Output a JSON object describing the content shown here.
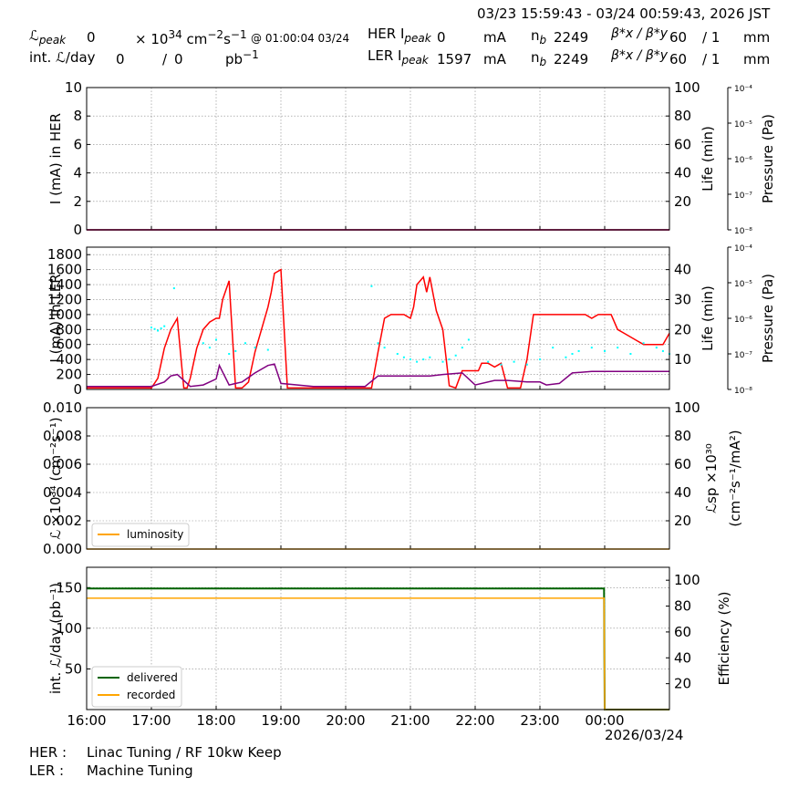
{
  "header": {
    "date_range": "03/23 15:59:43 - 03/24 00:59:43, 2026 JST",
    "lpeak_label": "ℒ",
    "lpeak_sub": "peak",
    "lpeak_value": "0",
    "lpeak_unit": "× 10",
    "lpeak_unit_exp": "34",
    "lpeak_unit_tail": " cm",
    "lpeak_unit_exp2": "−2",
    "lpeak_unit_tail2": "s",
    "lpeak_unit_exp3": "−1",
    "lpeak_time": "@ 01:00:04 03/24",
    "intl_label": "int. ℒ/day",
    "intl_value1": "0",
    "intl_sep": "/",
    "intl_value2": "0",
    "intl_unit": "pb",
    "intl_unit_exp": "−1",
    "her_label": "HER I",
    "her_sub": "peak",
    "her_value": "0",
    "her_unit": "mA",
    "ler_label": "LER I",
    "ler_sub": "peak",
    "ler_value": "1597",
    "ler_unit": "mA",
    "nb_label": "n",
    "nb_sub": "b",
    "her_nb": "2249",
    "ler_nb": "2249",
    "beta_label": "β*x / β*y",
    "her_beta_x": "60",
    "her_beta_y": "/ 1",
    "ler_beta_x": "60",
    "ler_beta_y": "/ 1",
    "beta_unit": "mm"
  },
  "footer": {
    "her_label": "HER :",
    "her_status": "Linac Tuning / RF 10kw Keep",
    "ler_label": "LER :",
    "ler_status": "Machine Tuning",
    "date_label": "2026/03/24"
  },
  "colors": {
    "current": "#ff0000",
    "lifetime": "#800080",
    "pressure": "#00ffff",
    "luminosity": "#ffa500",
    "delivered": "#006400",
    "recorded": "#ffa500",
    "grid": "#888888"
  },
  "chart_data": [
    {
      "type": "line",
      "panel": "her",
      "x_ticks": [
        "16:00",
        "17:00",
        "18:00",
        "19:00",
        "20:00",
        "21:00",
        "22:00",
        "23:00",
        "00:00"
      ],
      "ylabel": "I (mA) in HER",
      "ylim": [
        0,
        10
      ],
      "yticks": [
        0,
        2,
        4,
        6,
        8,
        10
      ],
      "ylabel_right": "Life (min)",
      "ylim_right": [
        0,
        100
      ],
      "yticks_right": [
        20,
        40,
        60,
        80,
        100
      ],
      "ylabel_right2": "Pressure (Pa)",
      "pressure_ticks": [
        "10⁻⁸",
        "10⁻⁷",
        "10⁻⁶",
        "10⁻⁵",
        "10⁻⁴"
      ],
      "grid": true,
      "series": [
        {
          "role": "current",
          "x": [
            0,
            9
          ],
          "y": [
            0,
            0
          ]
        },
        {
          "role": "lifetime",
          "x": [
            0,
            9
          ],
          "y": [
            0,
            0
          ]
        }
      ]
    },
    {
      "type": "line",
      "panel": "ler",
      "x_ticks": [
        "16:00",
        "17:00",
        "18:00",
        "19:00",
        "20:00",
        "21:00",
        "22:00",
        "23:00",
        "00:00"
      ],
      "ylabel": "I (mA) in LER",
      "ylim": [
        0,
        1900
      ],
      "yticks": [
        0,
        200,
        400,
        600,
        800,
        1000,
        1200,
        1400,
        1600,
        1800
      ],
      "ylabel_right": "Life (min)",
      "ylim_right": [
        0,
        47.5
      ],
      "yticks_right": [
        10,
        20,
        30,
        40
      ],
      "ylabel_right2": "Pressure (Pa)",
      "pressure_ticks": [
        "10⁻⁸",
        "10⁻⁷",
        "10⁻⁶",
        "10⁻⁵",
        "10⁻⁴"
      ],
      "grid": true,
      "series": [
        {
          "role": "current",
          "x": [
            0,
            1.0,
            1.1,
            1.2,
            1.3,
            1.4,
            1.5,
            1.55,
            1.6,
            1.7,
            1.8,
            1.9,
            2.0,
            2.05,
            2.1,
            2.2,
            2.3,
            2.4,
            2.5,
            2.6,
            2.7,
            2.8,
            2.85,
            2.9,
            3.0,
            3.1,
            3.2,
            3.3,
            3.4,
            3.5,
            3.6,
            3.7,
            3.8,
            3.9,
            4.0,
            4.05,
            4.1,
            4.2,
            4.25,
            4.3,
            4.4,
            4.5,
            4.6,
            4.7,
            4.8,
            4.9,
            5.0,
            5.05,
            5.1,
            5.2,
            5.25,
            5.3,
            5.4,
            5.5,
            5.6,
            5.7,
            5.8,
            5.9,
            6.0,
            6.05,
            6.1,
            6.2,
            6.3,
            6.4,
            6.5,
            6.6,
            6.7,
            6.8,
            6.9,
            7.0,
            7.05,
            7.1,
            7.2,
            7.3,
            7.4,
            7.5,
            7.6,
            7.7,
            7.8,
            7.9,
            8.0,
            8.1,
            8.2,
            8.3,
            8.4,
            8.5,
            8.6,
            8.7,
            8.8,
            8.9,
            9.0
          ],
          "y": [
            20,
            20,
            150,
            550,
            800,
            950,
            20,
            20,
            150,
            550,
            800,
            900,
            950,
            950,
            1200,
            1450,
            20,
            20,
            100,
            500,
            800,
            1100,
            1300,
            1550,
            1600,
            20,
            20,
            20,
            20,
            20,
            20,
            20,
            20,
            20,
            20,
            20,
            20,
            20,
            20,
            20,
            20,
            500,
            950,
            1000,
            1000,
            1000,
            950,
            1100,
            1400,
            1500,
            1300,
            1500,
            1050,
            800,
            50,
            20,
            250,
            250,
            250,
            250,
            350,
            350,
            300,
            350,
            20,
            20,
            20,
            400,
            1000,
            1000,
            1000,
            1000,
            1000,
            1000,
            1000,
            1000,
            1000,
            1000,
            950,
            1000,
            1000,
            1000,
            800,
            750,
            700,
            650,
            600,
            600,
            600,
            600,
            750
          ]
        },
        {
          "role": "lifetime",
          "x": [
            0,
            1.0,
            1.2,
            1.3,
            1.4,
            1.6,
            1.8,
            2.0,
            2.05,
            2.2,
            2.4,
            2.6,
            2.8,
            2.9,
            3.0,
            3.5,
            4.0,
            4.3,
            4.5,
            4.8,
            5.0,
            5.3,
            5.5,
            5.8,
            6.0,
            6.3,
            6.5,
            6.8,
            7.0,
            7.1,
            7.3,
            7.5,
            7.8,
            8.0,
            8.5,
            9.0
          ],
          "y": [
            1.0,
            1.0,
            2.5,
            4.5,
            5.0,
            1.0,
            1.5,
            3.5,
            8.0,
            1.5,
            2.5,
            5.5,
            8.0,
            8.5,
            2.0,
            1.0,
            1.0,
            1.0,
            4.5,
            4.5,
            4.5,
            4.5,
            5.0,
            5.5,
            1.5,
            3.0,
            3.0,
            2.5,
            2.5,
            1.5,
            2.0,
            5.5,
            6.0,
            6.0,
            6.0,
            6.0
          ]
        },
        {
          "role": "pressure",
          "type": "scatter",
          "x": [
            0.0,
            1.0,
            1.05,
            1.1,
            1.15,
            1.2,
            1.35,
            1.8,
            1.9,
            2.0,
            2.2,
            2.3,
            2.45,
            2.6,
            2.8,
            4.4,
            4.5,
            4.6,
            4.8,
            4.9,
            5.0,
            5.1,
            5.2,
            5.3,
            5.5,
            5.6,
            5.7,
            5.8,
            5.9,
            6.2,
            6.4,
            6.6,
            6.8,
            7.0,
            7.2,
            7.4,
            7.5,
            7.6,
            7.8,
            8.0,
            8.2,
            8.4,
            8.6,
            8.8,
            8.9,
            9.0
          ],
          "y": [
            0,
            5.5e-07,
            5e-07,
            4.5e-07,
            5.2e-07,
            6e-07,
            7e-06,
            2e-07,
            1.5e-07,
            2.5e-07,
            1e-07,
            1.2e-07,
            2e-07,
            1.5e-07,
            1.3e-07,
            8e-06,
            2e-07,
            1.5e-07,
            1e-07,
            8e-08,
            7e-08,
            6e-08,
            7e-08,
            8e-08,
            6e-08,
            7e-08,
            9e-08,
            1.5e-07,
            2.5e-07,
            6e-08,
            5e-08,
            6e-08,
            5e-08,
            7e-08,
            1.5e-07,
            8e-08,
            1e-07,
            1.2e-07,
            1.5e-07,
            1.2e-07,
            1.5e-07,
            1e-07,
            2e-07,
            1.5e-07,
            1.2e-07,
            1e-07
          ]
        }
      ]
    },
    {
      "type": "line",
      "panel": "luminosity",
      "x_ticks": [
        "16:00",
        "17:00",
        "18:00",
        "19:00",
        "20:00",
        "21:00",
        "22:00",
        "23:00",
        "00:00"
      ],
      "ylabel": "ℒ ×10³⁴ (cm⁻²s⁻¹)",
      "ylim": [
        0,
        0.01
      ],
      "yticks": [
        "0.000",
        "0.002",
        "0.004",
        "0.006",
        "0.008",
        "0.010"
      ],
      "ylabel_right": "ℒsp ×10³⁰",
      "ylabel_right_2": "(cm⁻²s⁻¹/mA²)",
      "ylim_right": [
        0,
        100
      ],
      "yticks_right": [
        20,
        40,
        60,
        80,
        100
      ],
      "legend": [
        "luminosity"
      ],
      "legend_loc": "lower left",
      "grid": true,
      "series": [
        {
          "name": "luminosity",
          "x": [
            0,
            9
          ],
          "y": [
            0,
            0
          ]
        }
      ]
    },
    {
      "type": "line",
      "panel": "integrated",
      "x_ticks": [
        "16:00",
        "17:00",
        "18:00",
        "19:00",
        "20:00",
        "21:00",
        "22:00",
        "23:00",
        "00:00"
      ],
      "ylabel": "int. ℒ/day (pb⁻¹)",
      "ylim": [
        0,
        175
      ],
      "yticks": [
        50,
        100,
        150
      ],
      "ylabel_right": "Efficiency (%)",
      "ylim_right": [
        0,
        110
      ],
      "yticks_right": [
        20,
        40,
        60,
        80,
        100
      ],
      "legend": [
        "delivered",
        "recorded"
      ],
      "legend_loc": "lower left",
      "grid": true,
      "series": [
        {
          "name": "delivered",
          "x": [
            0,
            7.99,
            8.0,
            9.0
          ],
          "y": [
            149,
            149,
            0,
            0
          ]
        },
        {
          "name": "recorded",
          "x": [
            0,
            7.99,
            8.0,
            9.0
          ],
          "y": [
            137,
            137,
            0,
            0
          ]
        }
      ]
    }
  ]
}
